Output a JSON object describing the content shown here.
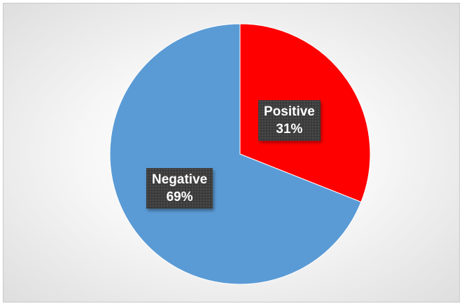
{
  "chart_data": {
    "type": "pie",
    "title": "",
    "categories": [
      "Positive",
      "Negative"
    ],
    "values": [
      31,
      69
    ],
    "labels": [
      {
        "name": "Positive",
        "percent": "31%"
      },
      {
        "name": "Negative",
        "percent": "69%"
      }
    ],
    "colors": [
      "#ff0000",
      "#5b9bd5"
    ],
    "legend": "none",
    "start_angle_deg": 0,
    "direction": "clockwise"
  }
}
